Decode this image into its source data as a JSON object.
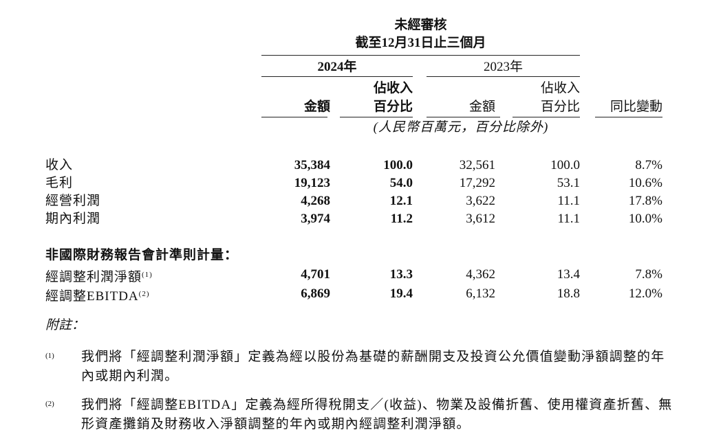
{
  "header": {
    "title": "未經審核",
    "period": "截至12月31日止三個月",
    "year_2024": "2024年",
    "year_2023": "2023年",
    "col_amount": "金額",
    "col_pct_line1": "佔收入",
    "col_pct_line2": "百分比",
    "col_yoy": "同比變動",
    "unit_note": "(人民幣百萬元，百分比除外)"
  },
  "rows": [
    {
      "label": "收入",
      "a2024": "35,384",
      "p2024": "100.0",
      "a2023": "32,561",
      "p2023": "100.0",
      "yoy": "8.7%"
    },
    {
      "label": "毛利",
      "a2024": "19,123",
      "p2024": "54.0",
      "a2023": "17,292",
      "p2023": "53.1",
      "yoy": "10.6%"
    },
    {
      "label": "經營利潤",
      "a2024": "4,268",
      "p2024": "12.1",
      "a2023": "3,622",
      "p2023": "11.1",
      "yoy": "17.8%"
    },
    {
      "label": "期內利潤",
      "a2024": "3,974",
      "p2024": "11.2",
      "a2023": "3,612",
      "p2023": "11.1",
      "yoy": "10.0%"
    }
  ],
  "non_ifrs": {
    "heading": "非國際財務報告會計準則計量：",
    "rows": [
      {
        "label": "經調整利潤淨額",
        "note": "(1)",
        "a2024": "4,701",
        "p2024": "13.3",
        "a2023": "4,362",
        "p2023": "13.4",
        "yoy": "7.8%"
      },
      {
        "label": "經調整EBITDA",
        "note": "(2)",
        "a2024": "6,869",
        "p2024": "19.4",
        "a2023": "6,132",
        "p2023": "18.8",
        "yoy": "12.0%"
      }
    ]
  },
  "notes": {
    "heading": "附註：",
    "items": [
      {
        "marker": "(1)",
        "text": "我們將「經調整利潤淨額」定義為經以股份為基礎的薪酬開支及投資公允價值變動淨額調整的年內或期內利潤。"
      },
      {
        "marker": "(2)",
        "text": "我們將「經調整EBITDA」定義為經所得稅開支／(收益)、物業及設備折舊、使用權資產折舊、無形資產攤銷及財務收入淨額調整的年內或期內經調整利潤淨額。"
      }
    ]
  }
}
